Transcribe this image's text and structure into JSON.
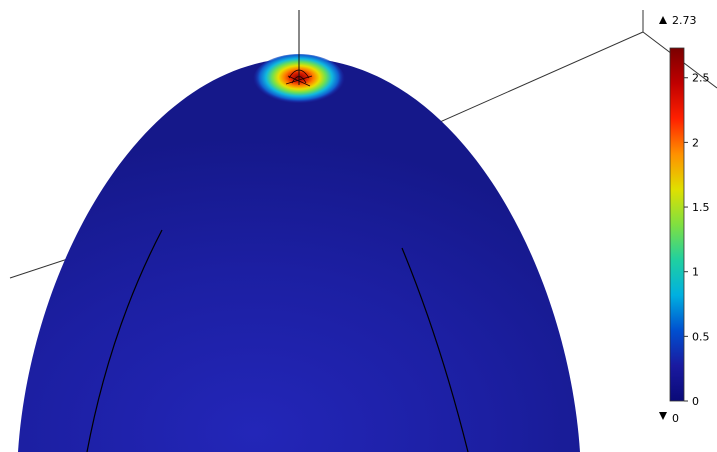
{
  "colorbar": {
    "max_label": "2.73",
    "min_label": "0",
    "max_value": 2.73,
    "min_value": 0,
    "ticks": [
      {
        "value": 2.5,
        "label": "2.5"
      },
      {
        "value": 2,
        "label": "2"
      },
      {
        "value": 1.5,
        "label": "1.5"
      },
      {
        "value": 1,
        "label": "1"
      },
      {
        "value": 0.5,
        "label": "0.5"
      },
      {
        "value": 0,
        "label": "0"
      }
    ],
    "colormap": [
      "#0a0a78",
      "#1a1aa0",
      "#0050d0",
      "#00b0e0",
      "#20d0a0",
      "#80e040",
      "#e0e000",
      "#ff9000",
      "#ff2000",
      "#c00000",
      "#7a0000"
    ]
  },
  "surface_color": "#1d20a4"
}
